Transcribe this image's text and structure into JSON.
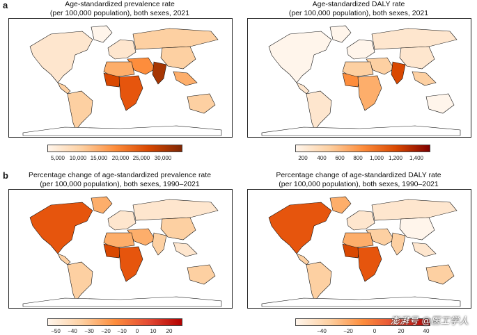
{
  "panels": {
    "a_label": "a",
    "b_label": "b"
  },
  "maps": [
    {
      "title_line1": "Age-standardized prevalence rate",
      "title_line2": "(per 100,000 population), both sexes, 2021",
      "colorbar": {
        "ticks": [
          "5,000",
          "10,000",
          "15,000",
          "20,000",
          "25,000",
          "30,000"
        ],
        "gradient": [
          "#fff5eb",
          "#fdd0a2",
          "#fd8d3c",
          "#d94801",
          "#7f2704"
        ]
      }
    },
    {
      "title_line1": "Age-standardized DALY rate",
      "title_line2": "(per 100,000 population), both sexes, 2021",
      "colorbar": {
        "ticks": [
          "200",
          "400",
          "600",
          "800",
          "1,000",
          "1,200",
          "1,400"
        ],
        "gradient": [
          "#fff5eb",
          "#fdd0a2",
          "#fd8d3c",
          "#d94801",
          "#7f0000"
        ]
      }
    },
    {
      "title_line1": "Percentage change of age-standardized prevalence rate",
      "title_line2": "(per 100,000 population), both sexes, 1990–2021",
      "colorbar": {
        "ticks": [
          "−50",
          "−40",
          "−30",
          "−20",
          "−10",
          "0",
          "10",
          "20"
        ],
        "gradient": [
          "#fff5eb",
          "#fdd0a2",
          "#fd8d3c",
          "#e34a33",
          "#b30000"
        ]
      }
    },
    {
      "title_line1": "Percentage change of age-standardized DALY rate",
      "title_line2": "(per 100,000 population), both sexes, 1990–2021",
      "colorbar": {
        "ticks": [
          "−40",
          "−20",
          "0",
          "20",
          "40"
        ],
        "gradient": [
          "#fff5eb",
          "#fdd0a2",
          "#fd8d3c",
          "#e34a33",
          "#b30000"
        ]
      }
    }
  ],
  "watermark": "澎湃号 @医工学人",
  "colors": {
    "ocean": "#ffffff",
    "border": "#111111"
  }
}
